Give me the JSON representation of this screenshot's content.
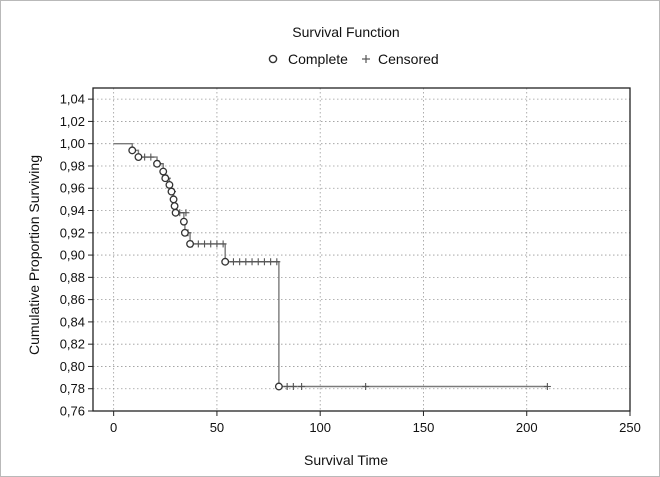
{
  "chart_data": {
    "type": "line",
    "title": "Survival Function",
    "xlabel": "Survival Time",
    "ylabel": "Cumulative Proportion Surviving",
    "xlim": [
      -10,
      250
    ],
    "ylim": [
      0.76,
      1.05
    ],
    "xticks": [
      0,
      50,
      100,
      150,
      200,
      250
    ],
    "xtick_labels": [
      "0",
      "50",
      "100",
      "150",
      "200",
      "250"
    ],
    "yticks": [
      0.76,
      0.78,
      0.8,
      0.82,
      0.84,
      0.86,
      0.88,
      0.9,
      0.92,
      0.94,
      0.96,
      0.98,
      1.0,
      1.02,
      1.04
    ],
    "ytick_labels": [
      "0,76",
      "0,78",
      "0,80",
      "0,82",
      "0,84",
      "0,86",
      "0,88",
      "0,90",
      "0,92",
      "0,94",
      "0,96",
      "0,98",
      "1,00",
      "1,02",
      "1,04"
    ],
    "grid": true,
    "legend": {
      "position": "top-center",
      "entries": [
        {
          "label": "Complete",
          "marker": "circle"
        },
        {
          "label": "Censored",
          "marker": "plus"
        }
      ]
    },
    "line_color": "#7a7a7a",
    "marker_color": "#333333",
    "survival_steps": [
      [
        0,
        1.0
      ],
      [
        9,
        0.994
      ],
      [
        12,
        0.988
      ],
      [
        21,
        0.982
      ],
      [
        24,
        0.975
      ],
      [
        25,
        0.969
      ],
      [
        27,
        0.963
      ],
      [
        28,
        0.957
      ],
      [
        29,
        0.95
      ],
      [
        29.5,
        0.944
      ],
      [
        30,
        0.938
      ],
      [
        34,
        0.93
      ],
      [
        34.5,
        0.92
      ],
      [
        37,
        0.91
      ],
      [
        54,
        0.894
      ],
      [
        80,
        0.782
      ],
      [
        210,
        0.782
      ]
    ],
    "series": [
      {
        "name": "Complete",
        "points": [
          {
            "x": 9,
            "y": 0.994
          },
          {
            "x": 12,
            "y": 0.988
          },
          {
            "x": 21,
            "y": 0.982
          },
          {
            "x": 24,
            "y": 0.975
          },
          {
            "x": 25,
            "y": 0.969
          },
          {
            "x": 27,
            "y": 0.963
          },
          {
            "x": 28,
            "y": 0.957
          },
          {
            "x": 29,
            "y": 0.95
          },
          {
            "x": 29.5,
            "y": 0.944
          },
          {
            "x": 30,
            "y": 0.938
          },
          {
            "x": 34,
            "y": 0.93
          },
          {
            "x": 34.5,
            "y": 0.92
          },
          {
            "x": 37,
            "y": 0.91
          },
          {
            "x": 54,
            "y": 0.894
          },
          {
            "x": 80,
            "y": 0.782
          }
        ]
      },
      {
        "name": "Censored",
        "points": [
          {
            "x": 15,
            "y": 0.988
          },
          {
            "x": 18,
            "y": 0.988
          },
          {
            "x": 22,
            "y": 0.982
          },
          {
            "x": 26,
            "y": 0.969
          },
          {
            "x": 28.5,
            "y": 0.957
          },
          {
            "x": 32,
            "y": 0.938
          },
          {
            "x": 35,
            "y": 0.938
          },
          {
            "x": 36,
            "y": 0.92
          },
          {
            "x": 38,
            "y": 0.91
          },
          {
            "x": 41,
            "y": 0.91
          },
          {
            "x": 44,
            "y": 0.91
          },
          {
            "x": 47,
            "y": 0.91
          },
          {
            "x": 50,
            "y": 0.91
          },
          {
            "x": 53,
            "y": 0.91
          },
          {
            "x": 58,
            "y": 0.894
          },
          {
            "x": 61,
            "y": 0.894
          },
          {
            "x": 64,
            "y": 0.894
          },
          {
            "x": 67,
            "y": 0.894
          },
          {
            "x": 70,
            "y": 0.894
          },
          {
            "x": 73,
            "y": 0.894
          },
          {
            "x": 76,
            "y": 0.894
          },
          {
            "x": 79,
            "y": 0.894
          },
          {
            "x": 84,
            "y": 0.782
          },
          {
            "x": 87,
            "y": 0.782
          },
          {
            "x": 91,
            "y": 0.782
          },
          {
            "x": 122,
            "y": 0.782
          },
          {
            "x": 210,
            "y": 0.782
          }
        ]
      }
    ]
  }
}
